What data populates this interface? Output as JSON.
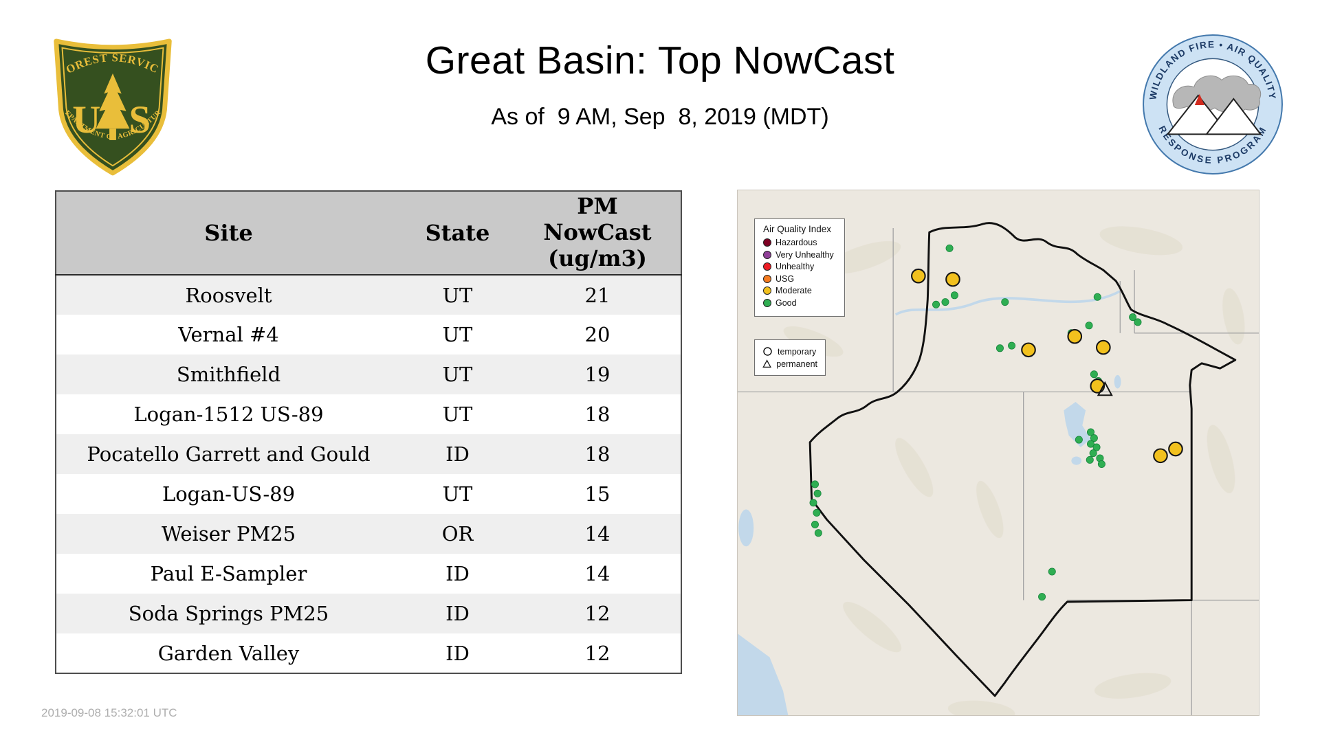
{
  "header": {
    "title": "Great Basin: Top NowCast",
    "subtitle": "As of  9 AM, Sep  8, 2019 (MDT)"
  },
  "logos": {
    "forest_service": {
      "arc_text": "FOREST SERVICE",
      "monogram_left": "U",
      "monogram_right": "S",
      "banner_text": "DEPARTMENT OF AGRICULTURE"
    },
    "program": {
      "arc_top": "WILDLAND FIRE • AIR QUALITY",
      "arc_bottom": "RESPONSE PROGRAM"
    }
  },
  "table": {
    "columns": {
      "site": "Site",
      "state": "State",
      "value_lines": [
        "PM",
        "NowCast",
        "(ug/m3)"
      ]
    },
    "rows": [
      {
        "site": "Roosvelt",
        "state": "UT",
        "value": "21"
      },
      {
        "site": "Vernal #4",
        "state": "UT",
        "value": "20"
      },
      {
        "site": "Smithfield",
        "state": "UT",
        "value": "19"
      },
      {
        "site": "Logan-1512 US-89",
        "state": "UT",
        "value": "18"
      },
      {
        "site": "Pocatello Garrett and Gould",
        "state": "ID",
        "value": "18"
      },
      {
        "site": "Logan-US-89",
        "state": "UT",
        "value": "15"
      },
      {
        "site": "Weiser PM25",
        "state": "OR",
        "value": "14"
      },
      {
        "site": "Paul E-Sampler",
        "state": "ID",
        "value": "14"
      },
      {
        "site": "Soda Springs PM25",
        "state": "ID",
        "value": "12"
      },
      {
        "site": "Garden Valley",
        "state": "ID",
        "value": "12"
      }
    ]
  },
  "map": {
    "legend_title": "Air Quality Index",
    "legend_items": [
      {
        "label": "Hazardous",
        "color": "#7e0023"
      },
      {
        "label": "Very Unhealthy",
        "color": "#8f3f97"
      },
      {
        "label": "Unhealthy",
        "color": "#ed1c24"
      },
      {
        "label": "USG",
        "color": "#f47b20"
      },
      {
        "label": "Moderate",
        "color": "#f2c11e"
      },
      {
        "label": "Good",
        "color": "#2fae52"
      }
    ],
    "marker_legend": [
      {
        "label": "temporary",
        "shape": "circle"
      },
      {
        "label": "permanent",
        "shape": "triangle"
      }
    ],
    "markers": {
      "moderate": [
        [
          215,
          102
        ],
        [
          256,
          106
        ],
        [
          346,
          190
        ],
        [
          401,
          174
        ],
        [
          435,
          187
        ],
        [
          428,
          233
        ],
        [
          503,
          316
        ],
        [
          521,
          308
        ]
      ],
      "permanent": [
        [
          437,
          238
        ]
      ],
      "good": [
        [
          252,
          69
        ],
        [
          236,
          136
        ],
        [
          247,
          133
        ],
        [
          258,
          125
        ],
        [
          318,
          133
        ],
        [
          428,
          127
        ],
        [
          470,
          151
        ],
        [
          476,
          157
        ],
        [
          418,
          161
        ],
        [
          397,
          170
        ],
        [
          312,
          188
        ],
        [
          326,
          185
        ],
        [
          424,
          219
        ],
        [
          429,
          227
        ],
        [
          406,
          297
        ],
        [
          420,
          288
        ],
        [
          424,
          295
        ],
        [
          420,
          302
        ],
        [
          427,
          306
        ],
        [
          423,
          313
        ],
        [
          431,
          319
        ],
        [
          419,
          321
        ],
        [
          433,
          326
        ],
        [
          92,
          350
        ],
        [
          95,
          361
        ],
        [
          90,
          372
        ],
        [
          94,
          384
        ],
        [
          92,
          398
        ],
        [
          96,
          408
        ],
        [
          374,
          454
        ],
        [
          362,
          484
        ]
      ]
    }
  },
  "footer": {
    "timestamp": "2019-09-08 15:32:01 UTC"
  }
}
